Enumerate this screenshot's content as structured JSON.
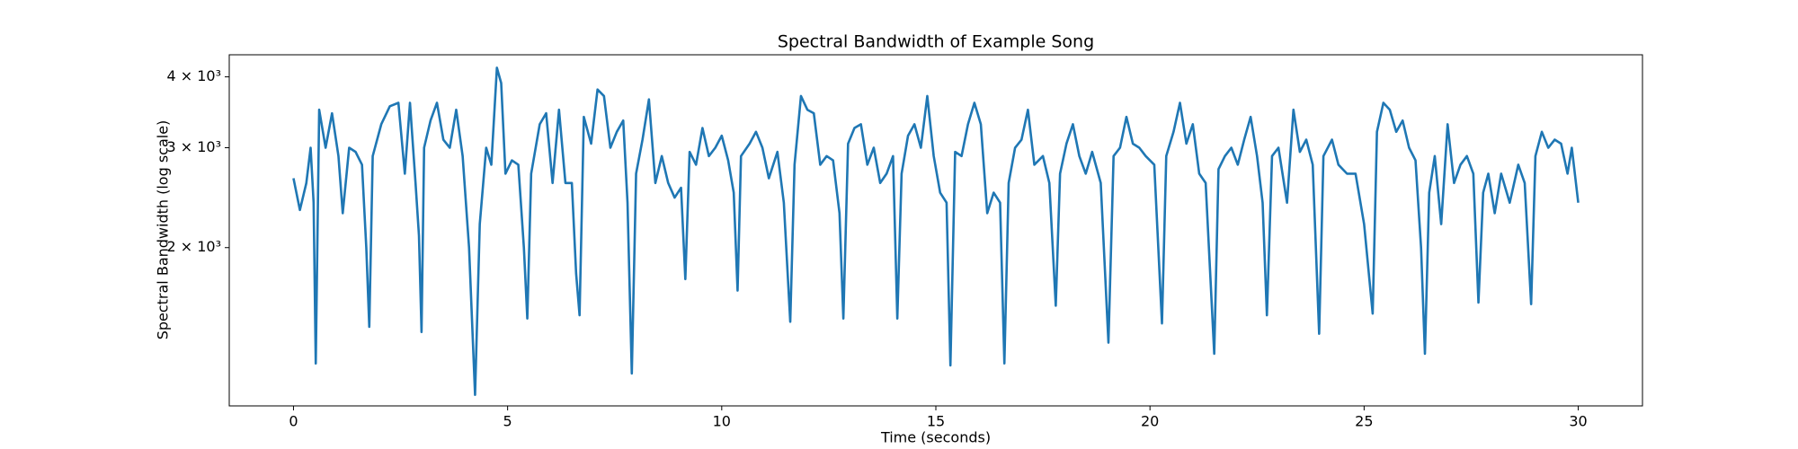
{
  "chart_data": {
    "type": "line",
    "title": "Spectral Bandwidth of Example Song",
    "x_label": "Time (seconds)",
    "y_label": "Spectral Bandwidth (log scale)",
    "log_y": true,
    "color": "#1f77b4",
    "xlim": [
      -1.5,
      31.5
    ],
    "ylim": [
      1052,
      4375
    ],
    "xticks": [
      0,
      5,
      10,
      15,
      20,
      25,
      30
    ],
    "yticks": [
      {
        "value": 2000,
        "label": "2 × 10³"
      },
      {
        "value": 3000,
        "label": "3 × 10³"
      },
      {
        "value": 4000,
        "label": "4 × 10³"
      }
    ],
    "x": [
      0.0,
      0.15,
      0.3,
      0.4,
      0.47,
      0.52,
      0.6,
      0.75,
      0.9,
      1.05,
      1.15,
      1.3,
      1.45,
      1.6,
      1.7,
      1.77,
      1.85,
      2.05,
      2.25,
      2.45,
      2.6,
      2.72,
      2.85,
      2.93,
      2.99,
      3.05,
      3.2,
      3.35,
      3.5,
      3.65,
      3.8,
      3.95,
      4.1,
      4.24,
      4.35,
      4.5,
      4.62,
      4.75,
      4.85,
      4.95,
      5.1,
      5.25,
      5.38,
      5.46,
      5.55,
      5.75,
      5.9,
      6.05,
      6.2,
      6.35,
      6.5,
      6.6,
      6.68,
      6.78,
      6.95,
      7.1,
      7.25,
      7.4,
      7.55,
      7.7,
      7.8,
      7.9,
      8.0,
      8.15,
      8.3,
      8.45,
      8.6,
      8.75,
      8.9,
      9.05,
      9.15,
      9.25,
      9.4,
      9.55,
      9.7,
      9.85,
      10.0,
      10.15,
      10.28,
      10.37,
      10.45,
      10.65,
      10.8,
      10.95,
      11.1,
      11.3,
      11.45,
      11.6,
      11.7,
      11.85,
      12.0,
      12.15,
      12.3,
      12.45,
      12.6,
      12.75,
      12.84,
      12.95,
      13.1,
      13.25,
      13.4,
      13.55,
      13.7,
      13.85,
      14.0,
      14.1,
      14.2,
      14.35,
      14.5,
      14.65,
      14.8,
      14.95,
      15.1,
      15.25,
      15.34,
      15.45,
      15.6,
      15.75,
      15.9,
      16.05,
      16.2,
      16.35,
      16.5,
      16.6,
      16.7,
      16.85,
      17.0,
      17.15,
      17.3,
      17.5,
      17.65,
      17.8,
      17.9,
      18.05,
      18.2,
      18.35,
      18.5,
      18.65,
      18.85,
      19.03,
      19.15,
      19.3,
      19.45,
      19.6,
      19.75,
      19.9,
      20.1,
      20.28,
      20.38,
      20.55,
      20.7,
      20.85,
      21.0,
      21.15,
      21.3,
      21.5,
      21.6,
      21.75,
      21.9,
      22.05,
      22.2,
      22.35,
      22.5,
      22.63,
      22.73,
      22.85,
      23.0,
      23.2,
      23.35,
      23.5,
      23.65,
      23.8,
      23.95,
      24.05,
      24.25,
      24.4,
      24.6,
      24.8,
      25.0,
      25.2,
      25.3,
      25.45,
      25.6,
      25.75,
      25.9,
      26.05,
      26.2,
      26.33,
      26.42,
      26.52,
      26.65,
      26.8,
      26.95,
      27.1,
      27.25,
      27.4,
      27.55,
      27.67,
      27.78,
      27.9,
      28.05,
      28.2,
      28.4,
      28.6,
      28.75,
      28.9,
      29.0,
      29.15,
      29.3,
      29.45,
      29.6,
      29.75,
      29.85,
      30.0
    ],
    "values": [
      2650,
      2330,
      2600,
      3000,
      2400,
      1250,
      3500,
      3000,
      3450,
      2900,
      2300,
      3000,
      2950,
      2800,
      2000,
      1450,
      2900,
      3300,
      3550,
      3600,
      2700,
      3600,
      2600,
      2100,
      1420,
      3000,
      3350,
      3600,
      3100,
      3000,
      3500,
      2900,
      2000,
      1100,
      2200,
      3000,
      2800,
      4150,
      3900,
      2700,
      2850,
      2800,
      2000,
      1500,
      2700,
      3300,
      3450,
      2600,
      3500,
      2600,
      2600,
      1800,
      1520,
      3400,
      3050,
      3800,
      3700,
      3000,
      3200,
      3350,
      2400,
      1200,
      2700,
      3100,
      3650,
      2600,
      2900,
      2600,
      2450,
      2550,
      1760,
      2950,
      2800,
      3250,
      2900,
      3000,
      3150,
      2850,
      2500,
      1680,
      2900,
      3050,
      3200,
      3000,
      2650,
      2950,
      2400,
      1480,
      2800,
      3700,
      3500,
      3450,
      2800,
      2900,
      2850,
      2300,
      1500,
      3050,
      3250,
      3300,
      2800,
      3000,
      2600,
      2700,
      2900,
      1500,
      2700,
      3150,
      3300,
      3000,
      3700,
      2900,
      2500,
      2400,
      1240,
      2950,
      2900,
      3300,
      3600,
      3300,
      2300,
      2500,
      2400,
      1250,
      2600,
      3000,
      3100,
      3500,
      2800,
      2900,
      2600,
      1580,
      2700,
      3050,
      3300,
      2900,
      2700,
      2950,
      2600,
      1360,
      2900,
      3000,
      3400,
      3050,
      3000,
      2900,
      2800,
      1470,
      2900,
      3200,
      3600,
      3050,
      3300,
      2700,
      2600,
      1300,
      2750,
      2900,
      3000,
      2800,
      3100,
      3400,
      2900,
      2400,
      1520,
      2900,
      3000,
      2400,
      3500,
      2950,
      3100,
      2800,
      1410,
      2900,
      3100,
      2800,
      2700,
      2700,
      2200,
      1530,
      3200,
      3600,
      3500,
      3200,
      3350,
      3000,
      2850,
      2000,
      1300,
      2500,
      2900,
      2200,
      3300,
      2600,
      2800,
      2900,
      2700,
      1600,
      2500,
      2700,
      2300,
      2700,
      2400,
      2800,
      2600,
      1590,
      2900,
      3200,
      3000,
      3100,
      3050,
      2700,
      3000,
      2400
    ]
  }
}
